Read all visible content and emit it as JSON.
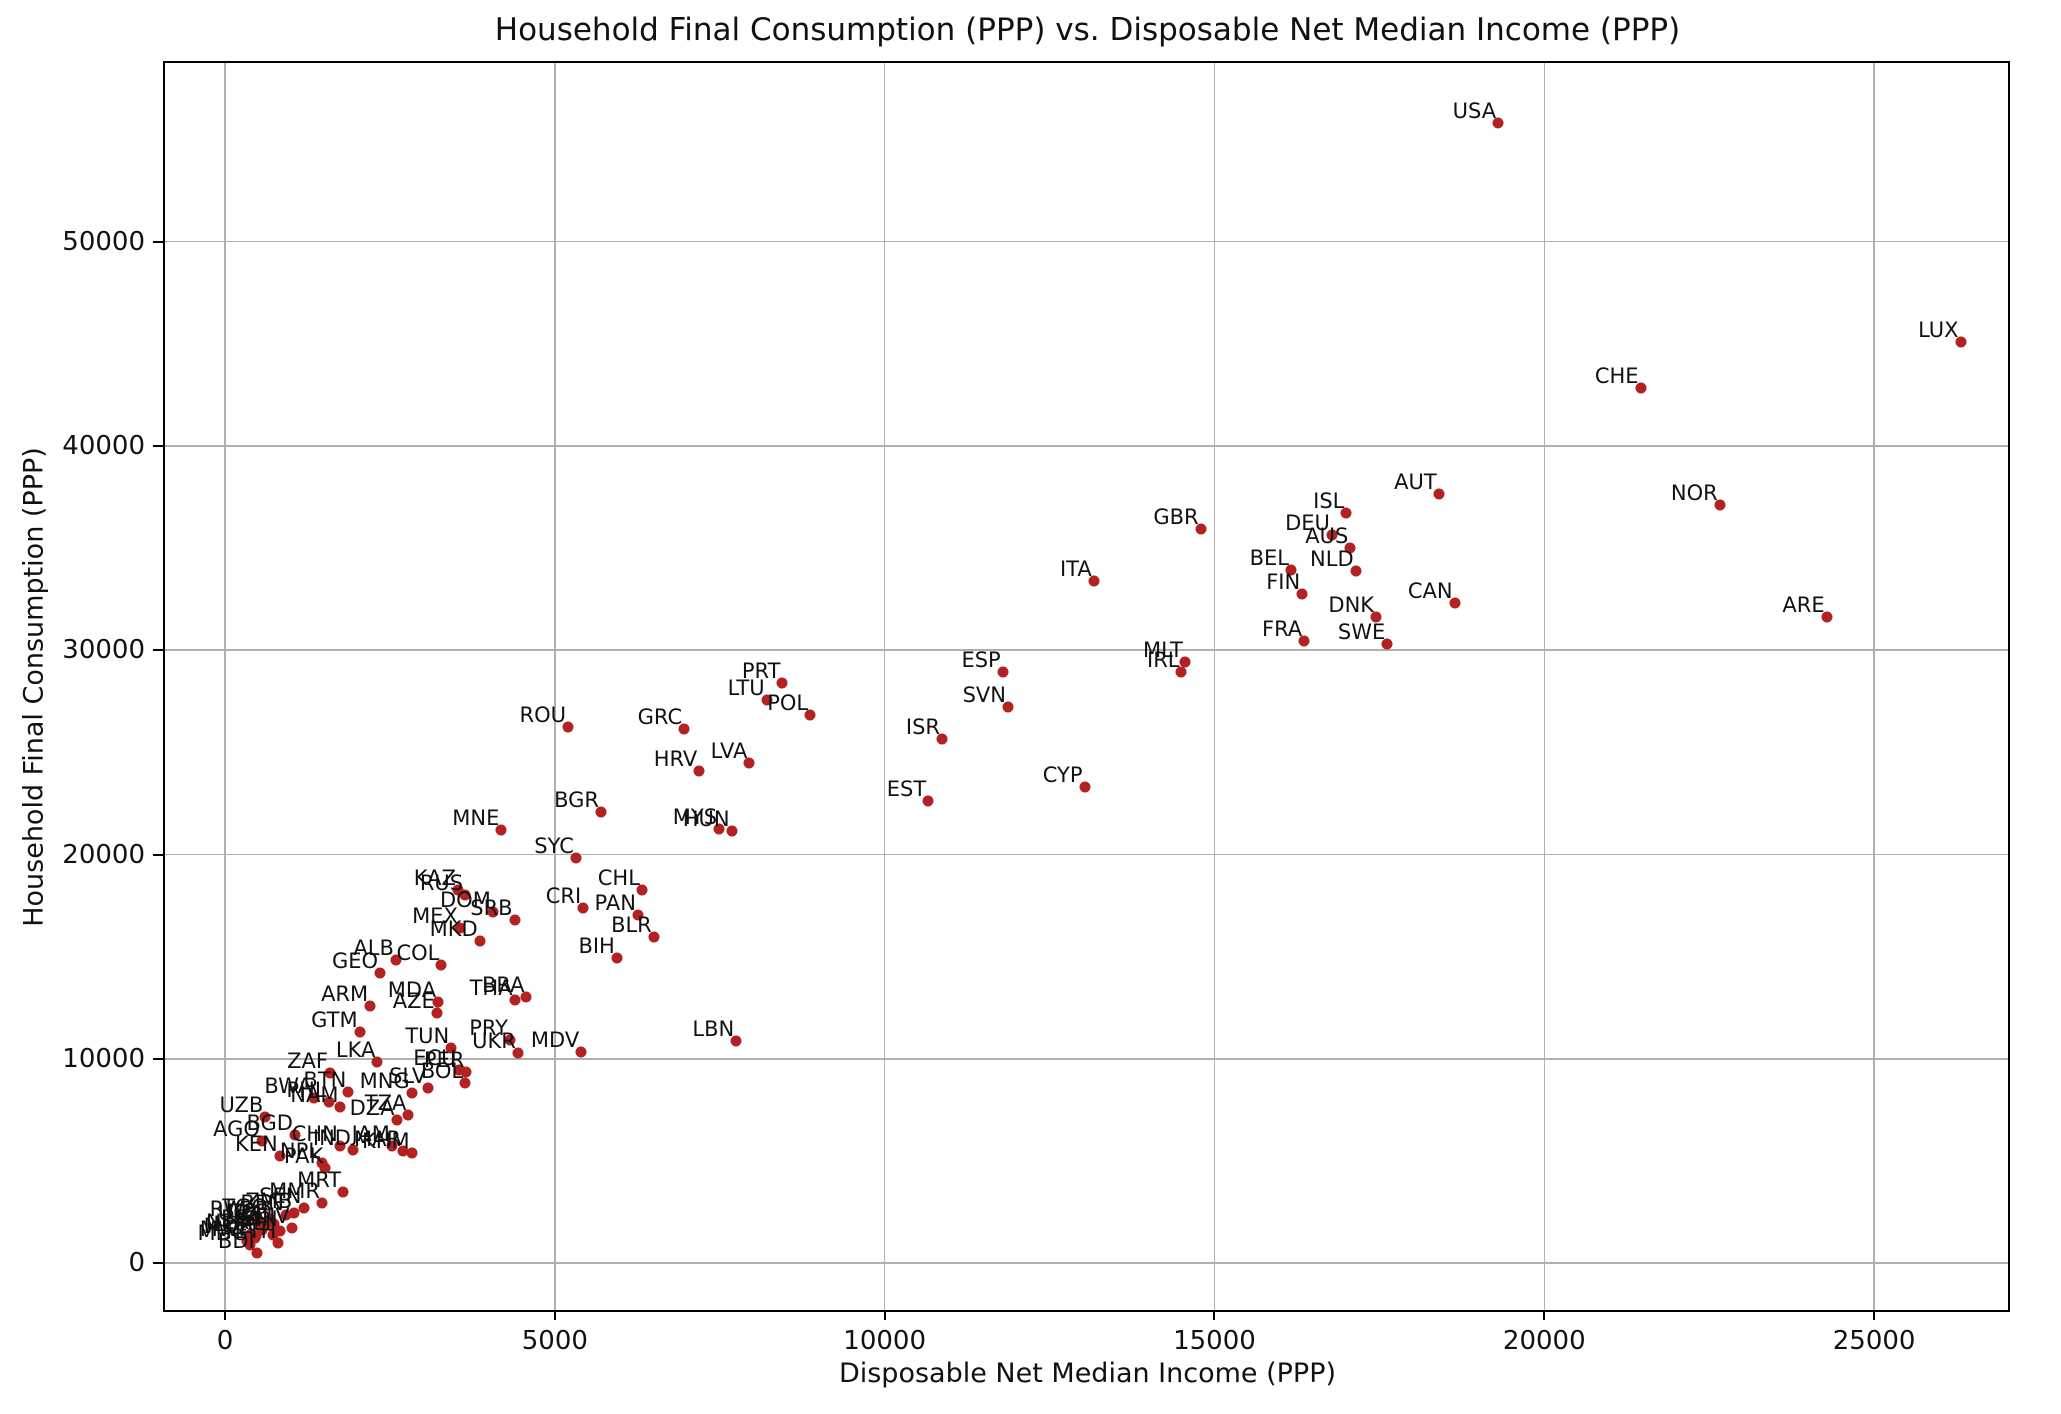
{
  "chart_data": {
    "type": "scatter",
    "title": "Household Final Consumption (PPP) vs. Disposable Net Median Income (PPP)",
    "xlabel": "Disposable Net Median Income (PPP)",
    "ylabel": "Household Final Consumption (PPP)",
    "xlim": [
      -910,
      27030
    ],
    "ylim": [
      -2300,
      58750
    ],
    "xticks": [
      0,
      5000,
      10000,
      15000,
      20000,
      25000
    ],
    "yticks": [
      0,
      10000,
      20000,
      30000,
      40000,
      50000
    ],
    "grid": true,
    "legend": "none",
    "marker_color": "#b22222",
    "grid_color": "#b0b0b0",
    "points": [
      {
        "code": "USA",
        "x": 19300,
        "y": 55820
      },
      {
        "code": "LUX",
        "x": 26310,
        "y": 45080
      },
      {
        "code": "CHE",
        "x": 21460,
        "y": 42850
      },
      {
        "code": "AUT",
        "x": 18400,
        "y": 37670
      },
      {
        "code": "NOR",
        "x": 22660,
        "y": 37110
      },
      {
        "code": "ISL",
        "x": 17000,
        "y": 36740
      },
      {
        "code": "GBR",
        "x": 14790,
        "y": 35920
      },
      {
        "code": "DEU",
        "x": 16780,
        "y": 35630
      },
      {
        "code": "AUS",
        "x": 17060,
        "y": 35030
      },
      {
        "code": "BEL",
        "x": 16160,
        "y": 33930
      },
      {
        "code": "NLD",
        "x": 17140,
        "y": 33890
      },
      {
        "code": "ITA",
        "x": 13170,
        "y": 33370
      },
      {
        "code": "FIN",
        "x": 16330,
        "y": 32750
      },
      {
        "code": "CAN",
        "x": 18640,
        "y": 32310
      },
      {
        "code": "DNK",
        "x": 17450,
        "y": 31640
      },
      {
        "code": "ARE",
        "x": 24280,
        "y": 31610
      },
      {
        "code": "FRA",
        "x": 16360,
        "y": 30440
      },
      {
        "code": "SWE",
        "x": 17620,
        "y": 30300
      },
      {
        "code": "MLT",
        "x": 14550,
        "y": 29420
      },
      {
        "code": "IRL",
        "x": 14500,
        "y": 28920
      },
      {
        "code": "ESP",
        "x": 11790,
        "y": 28920
      },
      {
        "code": "PRT",
        "x": 8450,
        "y": 28380
      },
      {
        "code": "LTU",
        "x": 8210,
        "y": 27580
      },
      {
        "code": "SVN",
        "x": 11870,
        "y": 27220
      },
      {
        "code": "POL",
        "x": 8870,
        "y": 26830
      },
      {
        "code": "ROU",
        "x": 5200,
        "y": 26260
      },
      {
        "code": "GRC",
        "x": 6960,
        "y": 26150
      },
      {
        "code": "ISR",
        "x": 10870,
        "y": 25660
      },
      {
        "code": "LVA",
        "x": 7950,
        "y": 24470
      },
      {
        "code": "HRV",
        "x": 7190,
        "y": 24080
      },
      {
        "code": "CYP",
        "x": 13030,
        "y": 23300
      },
      {
        "code": "EST",
        "x": 10660,
        "y": 22630
      },
      {
        "code": "BGR",
        "x": 5700,
        "y": 22060
      },
      {
        "code": "MYS",
        "x": 7490,
        "y": 21250
      },
      {
        "code": "MNE",
        "x": 4190,
        "y": 21200
      },
      {
        "code": "HUN",
        "x": 7680,
        "y": 21150
      },
      {
        "code": "SYC",
        "x": 5320,
        "y": 19830
      },
      {
        "code": "KAZ",
        "x": 3530,
        "y": 18250
      },
      {
        "code": "CHL",
        "x": 6320,
        "y": 18250
      },
      {
        "code": "RUS",
        "x": 3640,
        "y": 18000
      },
      {
        "code": "CRI",
        "x": 5430,
        "y": 17390
      },
      {
        "code": "DOM",
        "x": 4060,
        "y": 17190
      },
      {
        "code": "PAN",
        "x": 6260,
        "y": 17020
      },
      {
        "code": "SRB",
        "x": 4390,
        "y": 16780
      },
      {
        "code": "MEX",
        "x": 3560,
        "y": 16400
      },
      {
        "code": "BLR",
        "x": 6500,
        "y": 15970
      },
      {
        "code": "MKD",
        "x": 3860,
        "y": 15770
      },
      {
        "code": "BIH",
        "x": 5940,
        "y": 14940
      },
      {
        "code": "ALB",
        "x": 2590,
        "y": 14820
      },
      {
        "code": "COL",
        "x": 3280,
        "y": 14580
      },
      {
        "code": "GEO",
        "x": 2350,
        "y": 14180
      },
      {
        "code": "BRA",
        "x": 4570,
        "y": 13040
      },
      {
        "code": "THA",
        "x": 4390,
        "y": 12870
      },
      {
        "code": "MDA",
        "x": 3230,
        "y": 12790
      },
      {
        "code": "ARM",
        "x": 2200,
        "y": 12560
      },
      {
        "code": "AZE",
        "x": 3210,
        "y": 12250
      },
      {
        "code": "GTM",
        "x": 2040,
        "y": 11320
      },
      {
        "code": "PRY",
        "x": 4320,
        "y": 10910
      },
      {
        "code": "LBN",
        "x": 7750,
        "y": 10850
      },
      {
        "code": "TUN",
        "x": 3430,
        "y": 10510
      },
      {
        "code": "MDV",
        "x": 5400,
        "y": 10350
      },
      {
        "code": "UKR",
        "x": 4440,
        "y": 10260
      },
      {
        "code": "LKA",
        "x": 2310,
        "y": 9860
      },
      {
        "code": "ECU",
        "x": 3540,
        "y": 9450
      },
      {
        "code": "PER",
        "x": 3660,
        "y": 9370
      },
      {
        "code": "ZAF",
        "x": 1590,
        "y": 9290
      },
      {
        "code": "BOL",
        "x": 3640,
        "y": 8800
      },
      {
        "code": "SLV",
        "x": 3080,
        "y": 8550
      },
      {
        "code": "BTN",
        "x": 1870,
        "y": 8390
      },
      {
        "code": "MNG",
        "x": 2830,
        "y": 8310
      },
      {
        "code": "BWA",
        "x": 1350,
        "y": 8100
      },
      {
        "code": "PHL",
        "x": 1570,
        "y": 7900
      },
      {
        "code": "NAM",
        "x": 1750,
        "y": 7650
      },
      {
        "code": "TZA",
        "x": 2780,
        "y": 7250
      },
      {
        "code": "UZB",
        "x": 610,
        "y": 7170
      },
      {
        "code": "DZA",
        "x": 2600,
        "y": 7000
      },
      {
        "code": "BGD",
        "x": 1060,
        "y": 6280
      },
      {
        "code": "AGO",
        "x": 560,
        "y": 5950
      },
      {
        "code": "CHN",
        "x": 1740,
        "y": 5720
      },
      {
        "code": "JAM",
        "x": 2530,
        "y": 5720
      },
      {
        "code": "IND",
        "x": 1940,
        "y": 5520
      },
      {
        "code": "MAR",
        "x": 2700,
        "y": 5470
      },
      {
        "code": "KHM",
        "x": 2830,
        "y": 5380
      },
      {
        "code": "KEN",
        "x": 830,
        "y": 5220
      },
      {
        "code": "NPL",
        "x": 1470,
        "y": 4890
      },
      {
        "code": "PAK",
        "x": 1520,
        "y": 4640
      },
      {
        "code": "MRT",
        "x": 1790,
        "y": 3500
      },
      {
        "code": "MMR",
        "x": 1470,
        "y": 2930
      },
      {
        "code": "SEN",
        "x": 1190,
        "y": 2690
      },
      {
        "code": "ZMB",
        "x": 1050,
        "y": 2450
      },
      {
        "code": "BEN",
        "x": 920,
        "y": 2350
      },
      {
        "code": "TGO",
        "x": 680,
        "y": 2150
      },
      {
        "code": "RWA",
        "x": 520,
        "y": 2050
      },
      {
        "code": "TCD",
        "x": 740,
        "y": 1900
      },
      {
        "code": "UGA",
        "x": 620,
        "y": 1850
      },
      {
        "code": "CIV",
        "x": 1010,
        "y": 1710
      },
      {
        "code": "BFA",
        "x": 560,
        "y": 1600
      },
      {
        "code": "GIN",
        "x": 830,
        "y": 1550
      },
      {
        "code": "NER",
        "x": 400,
        "y": 1400
      },
      {
        "code": "MLI",
        "x": 730,
        "y": 1380
      },
      {
        "code": "LBR",
        "x": 470,
        "y": 1300
      },
      {
        "code": "MOZ",
        "x": 450,
        "y": 1220
      },
      {
        "code": "MWI",
        "x": 330,
        "y": 1080
      },
      {
        "code": "ETH",
        "x": 810,
        "y": 980
      },
      {
        "code": "MDG",
        "x": 380,
        "y": 900
      },
      {
        "code": "BDI",
        "x": 480,
        "y": 490
      }
    ]
  }
}
